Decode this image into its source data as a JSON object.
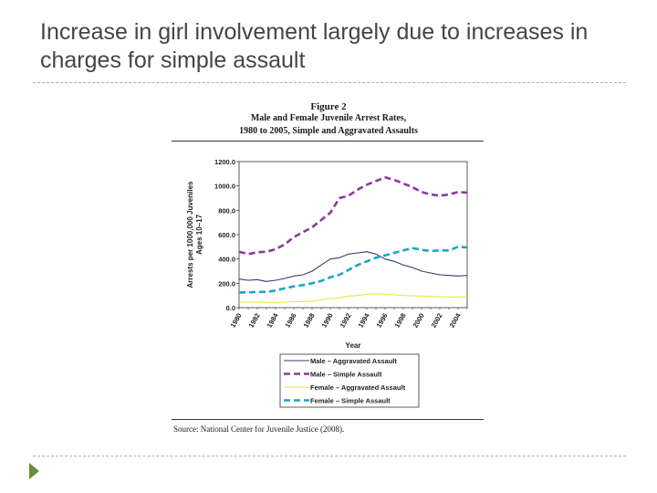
{
  "slide": {
    "title": "Increase in girl involvement largely due to increases in charges for simple assault"
  },
  "figure": {
    "number": "Figure 2",
    "subtitle_line1": "Male and Female Juvenile Arrest Rates,",
    "subtitle_line2": "1980 to 2005, Simple and Aggravated Assaults",
    "source": "Source: National Center for Juvenile Justice (2008)."
  },
  "chart_data": {
    "type": "line",
    "title": "Male and Female Juvenile Arrest Rates, 1980 to 2005, Simple and Aggravated Assaults",
    "xlabel": "Year",
    "ylabel": "Arrests per 1000,000 Juveniles Ages 10–17",
    "ylim": [
      0,
      1200
    ],
    "yticks": [
      "0.0",
      "200.0",
      "400.0",
      "600.0",
      "800.0",
      "1000.0",
      "1200.0"
    ],
    "x": [
      1980,
      1981,
      1982,
      1983,
      1984,
      1985,
      1986,
      1987,
      1988,
      1989,
      1990,
      1991,
      1992,
      1993,
      1994,
      1995,
      1996,
      1997,
      1998,
      1999,
      2000,
      2001,
      2002,
      2003,
      2004,
      2005
    ],
    "xticks": [
      "1980",
      "1982",
      "1984",
      "1986",
      "1988",
      "1990",
      "1992",
      "1994",
      "1996",
      "1998",
      "2000",
      "2002",
      "2004"
    ],
    "series": [
      {
        "name": "Male – Aggravated Assault",
        "color": "#3a3a6e",
        "style": "solid",
        "values": [
          235,
          225,
          230,
          215,
          225,
          240,
          260,
          270,
          300,
          350,
          400,
          410,
          440,
          450,
          460,
          440,
          400,
          380,
          350,
          330,
          300,
          285,
          270,
          265,
          260,
          265
        ]
      },
      {
        "name": "Male – Simple Assault",
        "color": "#8a3a9e",
        "style": "dashed",
        "values": [
          460,
          440,
          455,
          460,
          480,
          520,
          580,
          620,
          660,
          720,
          780,
          900,
          920,
          970,
          1010,
          1040,
          1070,
          1050,
          1020,
          990,
          950,
          930,
          920,
          930,
          950,
          945
        ]
      },
      {
        "name": "Female – Aggravated Assault",
        "color": "#e6e64a",
        "style": "solid",
        "values": [
          45,
          45,
          45,
          42,
          42,
          45,
          48,
          50,
          55,
          65,
          75,
          80,
          95,
          100,
          110,
          115,
          110,
          105,
          100,
          98,
          95,
          92,
          90,
          88,
          88,
          88
        ]
      },
      {
        "name": "Female – Simple Assault",
        "color": "#1aa6c4",
        "style": "dashed",
        "values": [
          125,
          125,
          128,
          130,
          140,
          160,
          175,
          185,
          200,
          220,
          250,
          270,
          310,
          350,
          380,
          410,
          430,
          450,
          470,
          490,
          475,
          465,
          470,
          470,
          500,
          495
        ]
      }
    ]
  }
}
